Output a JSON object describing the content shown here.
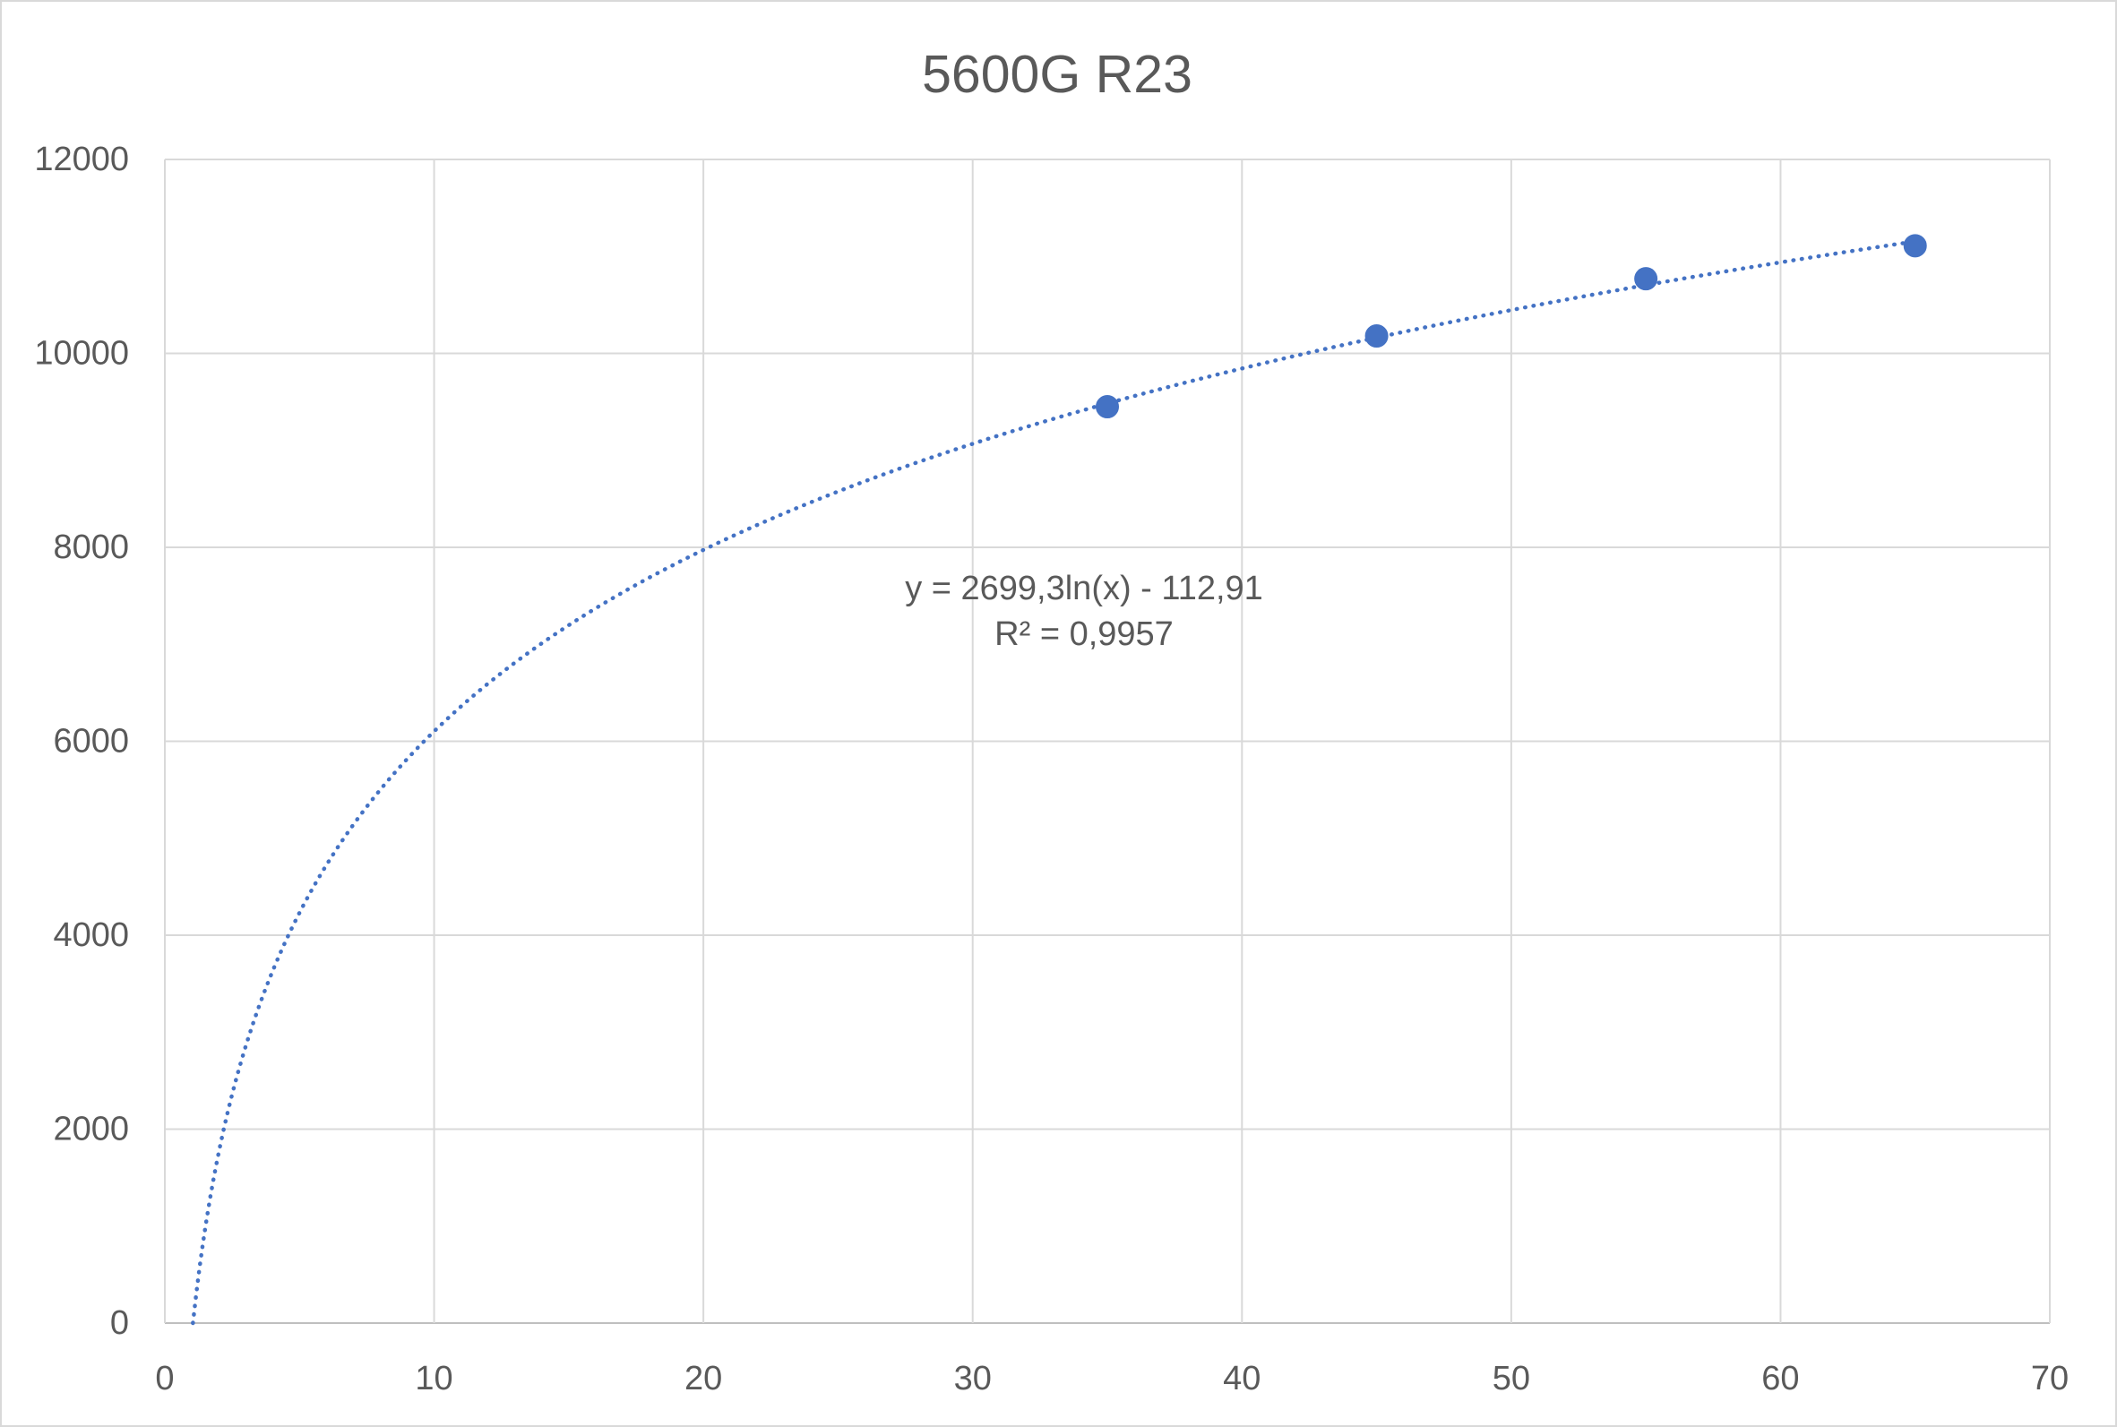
{
  "chart_data": {
    "type": "scatter",
    "title": "5600G R23",
    "x": [
      35,
      45,
      55,
      65
    ],
    "y": [
      9450,
      10180,
      10770,
      11110
    ],
    "xlim": [
      0,
      70
    ],
    "ylim": [
      0,
      12000
    ],
    "x_ticks": [
      0,
      10,
      20,
      30,
      40,
      50,
      60,
      70
    ],
    "y_ticks": [
      0,
      2000,
      4000,
      6000,
      8000,
      10000,
      12000
    ],
    "grid": true,
    "legend": "none",
    "trendline": {
      "type": "logarithmic",
      "a": 2699.3,
      "b": -112.91,
      "style": "dotted",
      "equation_label": "y = 2699,3ln(x) - 112,91",
      "r2_label": "R² = 0,9957"
    },
    "colors": {
      "series": "#4472C4",
      "grid": "#D9D9D9",
      "axis": "#BFBFBF",
      "text": "#595959"
    }
  }
}
